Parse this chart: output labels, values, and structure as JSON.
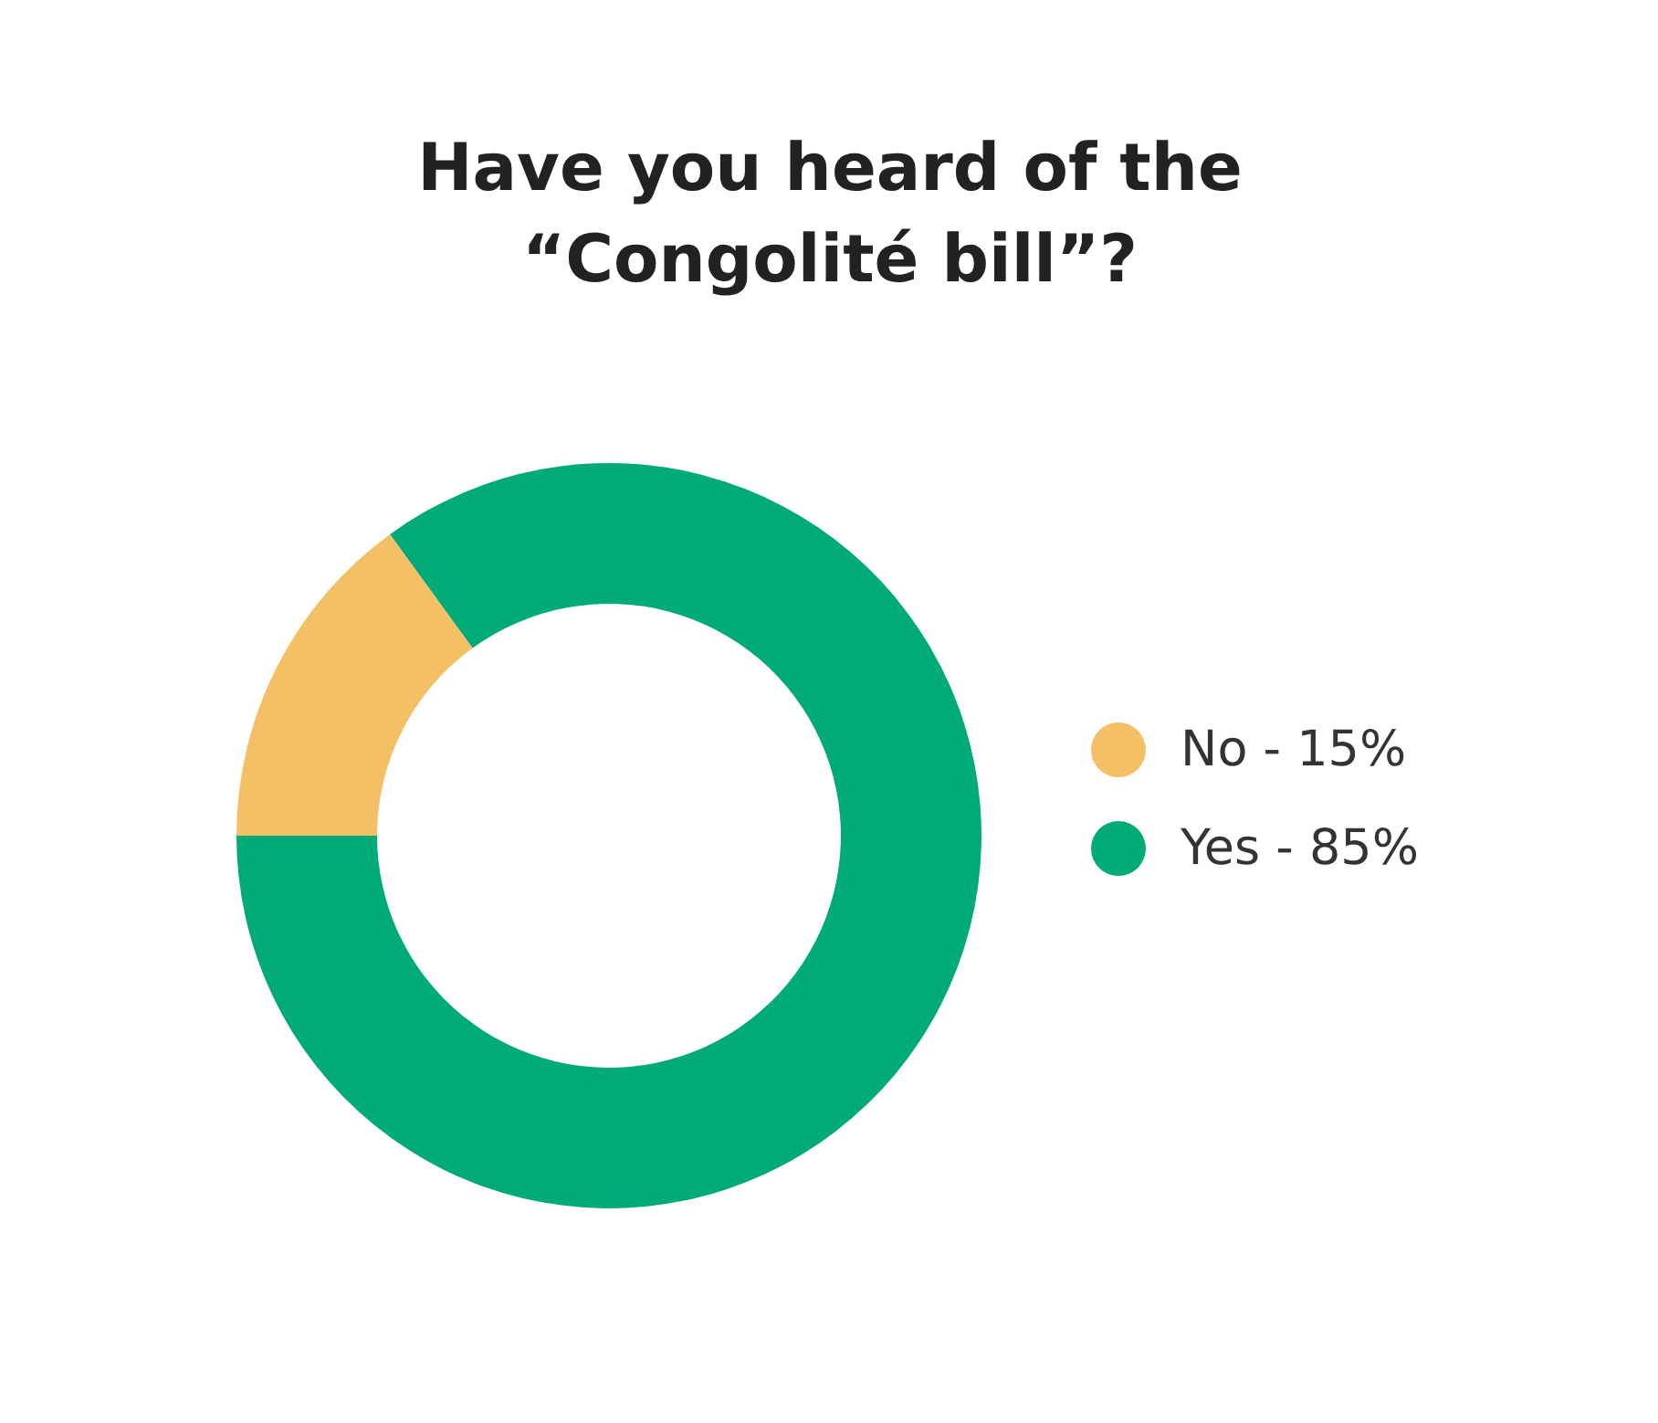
{
  "chart_data": {
    "type": "donut",
    "title": "Have you heard of the “Congolité bill”?",
    "categories": [
      "No - 15%",
      "Yes - 85%"
    ],
    "values": [
      15,
      85
    ],
    "colors": [
      "#f4bf65",
      "#00ab78"
    ],
    "legend": "right"
  }
}
